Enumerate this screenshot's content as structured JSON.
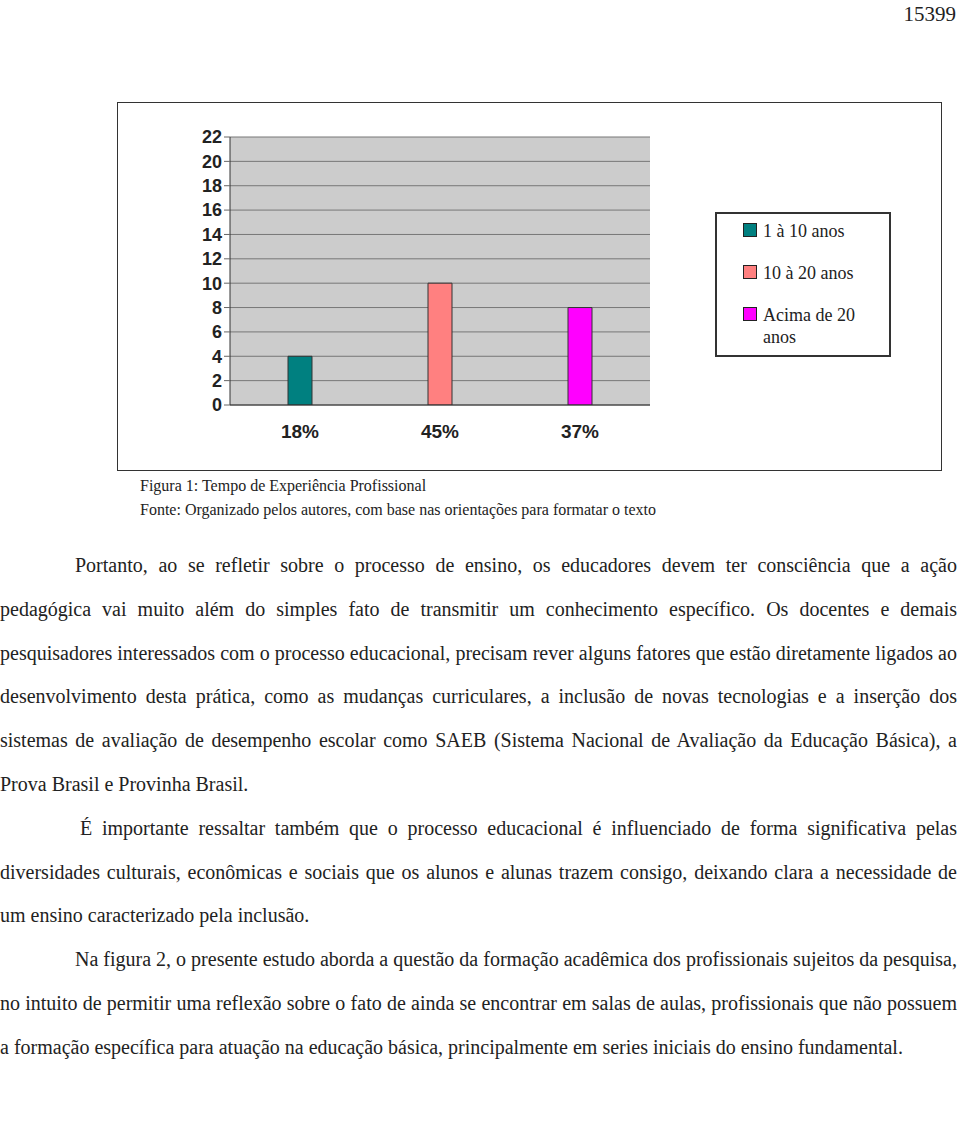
{
  "page_number": "15399",
  "chart_data": {
    "type": "bar",
    "categories": [
      "18%",
      "45%",
      "37%"
    ],
    "series": [
      {
        "name": "1 à 10 anos",
        "color": "#008080",
        "values": [
          4,
          null,
          null
        ]
      },
      {
        "name": "10 à 20 anos",
        "color": "#ff8080",
        "values": [
          null,
          10,
          null
        ]
      },
      {
        "name": "Acima de 20 anos",
        "color": "#ff00ff",
        "values": [
          null,
          null,
          8
        ]
      }
    ],
    "stacked": true,
    "ylim": [
      0,
      22
    ],
    "yticks": [
      0,
      2,
      4,
      6,
      8,
      10,
      12,
      14,
      16,
      18,
      20,
      22
    ],
    "grid": true,
    "legend": "right"
  },
  "caption": [
    "Figura 1: Tempo de Experiência Profissional",
    "Fonte: Organizado pelos autores, com base nas orientações para formatar o texto"
  ],
  "paragraphs": [
    "Portanto, ao se refletir sobre o processo de ensino, os educadores devem ter consciência que a ação pedagógica vai muito além do simples fato de transmitir um conhecimento específico. Os docentes e demais pesquisadores interessados com o processo educacional, precisam rever alguns fatores que estão diretamente ligados ao desenvolvimento desta prática, como as mudanças curriculares, a inclusão de novas tecnologias e a inserção dos sistemas de avaliação de desempenho escolar como SAEB (Sistema Nacional de Avaliação da Educação Básica), a Prova Brasil e Provinha Brasil.",
    "É importante ressaltar também que o processo educacional é influenciado de forma significativa pelas diversidades culturais, econômicas e sociais que os alunos e alunas trazem consigo, deixando clara a necessidade de um ensino caracterizado pela inclusão.",
    "Na figura 2, o presente estudo aborda a questão da formação acadêmica dos profissionais sujeitos da pesquisa, no intuito de permitir uma reflexão sobre o fato de ainda se encontrar em salas de aulas, profissionais que não possuem a formação específica para atuação na educação básica, principalmente em series iniciais do ensino fundamental."
  ]
}
